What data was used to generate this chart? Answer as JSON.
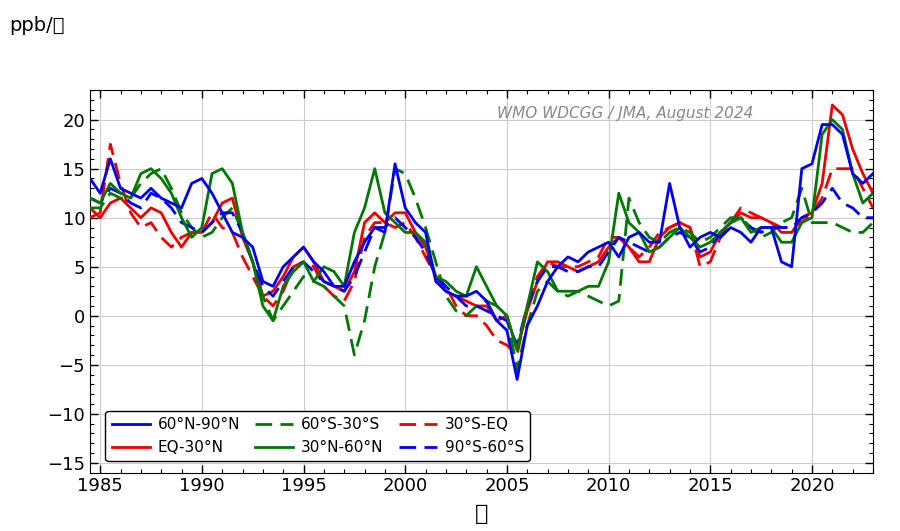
{
  "title_annotation": "WMO WDCGG / JMA, August 2024",
  "ylabel": "ppb/年",
  "xlabel": "年",
  "xlim": [
    1984.5,
    2023.0
  ],
  "ylim": [
    -16,
    23
  ],
  "yticks": [
    -15,
    -10,
    -5,
    0,
    5,
    10,
    15,
    20
  ],
  "xticks": [
    1985,
    1990,
    1995,
    2000,
    2005,
    2010,
    2015,
    2020
  ],
  "colors": {
    "60N90N": "#0000ee",
    "30N60N": "#007700",
    "EQ30N": "#ee0000",
    "30SEQ": "#ee0000",
    "60S30S": "#007700",
    "90S60S": "#0000ee"
  },
  "series": {
    "60N90N": {
      "t": [
        1984.5,
        1985.0,
        1985.5,
        1986.0,
        1986.5,
        1987.0,
        1987.5,
        1988.0,
        1988.5,
        1989.0,
        1989.5,
        1990.0,
        1990.5,
        1991.0,
        1991.5,
        1992.0,
        1992.5,
        1993.0,
        1993.5,
        1994.0,
        1994.5,
        1995.0,
        1995.5,
        1996.0,
        1996.5,
        1997.0,
        1997.5,
        1998.0,
        1998.5,
        1999.0,
        1999.5,
        2000.0,
        2000.5,
        2001.0,
        2001.5,
        2002.0,
        2002.5,
        2003.0,
        2003.5,
        2004.0,
        2004.5,
        2005.0,
        2005.5,
        2006.0,
        2006.5,
        2007.0,
        2007.5,
        2008.0,
        2008.5,
        2009.0,
        2009.5,
        2010.0,
        2010.5,
        2011.0,
        2011.5,
        2012.0,
        2012.5,
        2013.0,
        2013.5,
        2014.0,
        2014.5,
        2015.0,
        2015.5,
        2016.0,
        2016.5,
        2017.0,
        2017.5,
        2018.0,
        2018.5,
        2019.0,
        2019.5,
        2020.0,
        2020.5,
        2021.0,
        2021.5,
        2022.0,
        2022.5,
        2023.0
      ],
      "v": [
        14.0,
        12.5,
        16.0,
        13.0,
        12.5,
        12.0,
        13.0,
        12.0,
        11.5,
        11.0,
        13.5,
        14.0,
        12.5,
        10.5,
        8.5,
        8.0,
        7.0,
        3.5,
        3.0,
        5.0,
        6.0,
        7.0,
        5.5,
        4.5,
        3.0,
        3.0,
        5.5,
        7.5,
        9.0,
        8.5,
        15.5,
        11.0,
        9.5,
        8.5,
        3.5,
        2.5,
        2.0,
        2.0,
        2.5,
        1.5,
        -0.5,
        -1.5,
        -6.5,
        -1.0,
        1.0,
        3.5,
        5.0,
        6.0,
        5.5,
        6.5,
        7.0,
        7.5,
        6.0,
        8.0,
        8.5,
        7.5,
        7.5,
        13.5,
        9.0,
        7.0,
        8.0,
        8.5,
        8.0,
        9.0,
        8.5,
        7.5,
        9.0,
        9.0,
        5.5,
        5.0,
        15.0,
        15.5,
        19.5,
        19.5,
        18.5,
        14.5,
        13.5,
        14.5
      ]
    },
    "30N60N": {
      "t": [
        1984.5,
        1985.0,
        1985.5,
        1986.0,
        1986.5,
        1987.0,
        1987.5,
        1988.0,
        1988.5,
        1989.0,
        1989.5,
        1990.0,
        1990.5,
        1991.0,
        1991.5,
        1992.0,
        1992.5,
        1993.0,
        1993.5,
        1994.0,
        1994.5,
        1995.0,
        1995.5,
        1996.0,
        1996.5,
        1997.0,
        1997.5,
        1998.0,
        1998.5,
        1999.0,
        1999.5,
        2000.0,
        2000.5,
        2001.0,
        2001.5,
        2002.0,
        2002.5,
        2003.0,
        2003.5,
        2004.0,
        2004.5,
        2005.0,
        2005.5,
        2006.0,
        2006.5,
        2007.0,
        2007.5,
        2008.0,
        2008.5,
        2009.0,
        2009.5,
        2010.0,
        2010.5,
        2011.0,
        2011.5,
        2012.0,
        2012.5,
        2013.0,
        2013.5,
        2014.0,
        2014.5,
        2015.0,
        2015.5,
        2016.0,
        2016.5,
        2017.0,
        2017.5,
        2018.0,
        2018.5,
        2019.0,
        2019.5,
        2020.0,
        2020.5,
        2021.0,
        2021.5,
        2022.0,
        2022.5,
        2023.0
      ],
      "v": [
        12.0,
        11.5,
        13.5,
        12.5,
        12.0,
        14.5,
        15.0,
        14.0,
        12.5,
        10.0,
        8.0,
        9.0,
        14.5,
        15.0,
        13.5,
        8.5,
        5.5,
        1.0,
        -0.5,
        3.0,
        4.5,
        5.5,
        3.5,
        5.0,
        4.5,
        3.0,
        8.5,
        11.0,
        15.0,
        10.5,
        9.5,
        8.5,
        8.5,
        7.5,
        4.0,
        3.5,
        2.5,
        2.0,
        5.0,
        3.0,
        1.0,
        0.0,
        -3.5,
        1.0,
        5.5,
        4.5,
        2.5,
        2.5,
        2.5,
        3.0,
        3.0,
        5.5,
        12.5,
        9.5,
        8.5,
        6.5,
        7.0,
        8.0,
        9.0,
        8.0,
        7.0,
        7.5,
        8.5,
        9.5,
        10.0,
        8.5,
        9.0,
        9.0,
        7.5,
        7.5,
        9.5,
        10.0,
        18.5,
        20.0,
        19.0,
        14.5,
        11.5,
        12.5
      ]
    },
    "EQ30N": {
      "t": [
        1984.5,
        1985.0,
        1985.5,
        1986.0,
        1986.5,
        1987.0,
        1987.5,
        1988.0,
        1988.5,
        1989.0,
        1989.5,
        1990.0,
        1990.5,
        1991.0,
        1991.5,
        1992.0,
        1992.5,
        1993.0,
        1993.5,
        1994.0,
        1994.5,
        1995.0,
        1995.5,
        1996.0,
        1996.5,
        1997.0,
        1997.5,
        1998.0,
        1998.5,
        1999.0,
        1999.5,
        2000.0,
        2000.5,
        2001.0,
        2001.5,
        2002.0,
        2002.5,
        2003.0,
        2003.5,
        2004.0,
        2004.5,
        2005.0,
        2005.5,
        2006.0,
        2006.5,
        2007.0,
        2007.5,
        2008.0,
        2008.5,
        2009.0,
        2009.5,
        2010.0,
        2010.5,
        2011.0,
        2011.5,
        2012.0,
        2012.5,
        2013.0,
        2013.5,
        2014.0,
        2014.5,
        2015.0,
        2015.5,
        2016.0,
        2016.5,
        2017.0,
        2017.5,
        2018.0,
        2018.5,
        2019.0,
        2019.5,
        2020.0,
        2020.5,
        2021.0,
        2021.5,
        2022.0,
        2022.5,
        2023.0
      ],
      "v": [
        11.0,
        10.0,
        11.5,
        12.0,
        11.0,
        10.0,
        11.0,
        10.5,
        8.5,
        7.0,
        8.5,
        8.5,
        9.5,
        11.5,
        12.0,
        8.0,
        5.5,
        2.0,
        2.5,
        4.0,
        6.0,
        7.0,
        5.5,
        3.5,
        3.0,
        2.5,
        4.5,
        9.5,
        10.5,
        9.5,
        10.5,
        10.5,
        8.5,
        7.0,
        4.0,
        2.5,
        2.0,
        1.5,
        1.0,
        1.0,
        -0.5,
        0.0,
        -3.5,
        0.5,
        3.5,
        5.5,
        5.5,
        5.0,
        4.5,
        5.0,
        5.5,
        7.0,
        8.0,
        7.0,
        5.5,
        5.5,
        8.0,
        9.0,
        9.5,
        9.0,
        6.0,
        6.5,
        8.5,
        9.5,
        10.5,
        10.0,
        10.0,
        9.5,
        8.5,
        8.5,
        10.0,
        10.5,
        13.5,
        21.5,
        20.5,
        17.0,
        14.5,
        12.5
      ]
    },
    "30SEQ": {
      "t": [
        1984.5,
        1985.0,
        1985.5,
        1986.0,
        1986.5,
        1987.0,
        1987.5,
        1988.0,
        1988.5,
        1989.0,
        1989.5,
        1990.0,
        1990.5,
        1991.0,
        1991.5,
        1992.0,
        1992.5,
        1993.0,
        1993.5,
        1994.0,
        1994.5,
        1995.0,
        1995.5,
        1996.0,
        1996.5,
        1997.0,
        1997.5,
        1998.0,
        1998.5,
        1999.0,
        1999.5,
        2000.0,
        2000.5,
        2001.0,
        2001.5,
        2002.0,
        2002.5,
        2003.0,
        2003.5,
        2004.0,
        2004.5,
        2005.0,
        2005.5,
        2006.0,
        2006.5,
        2007.0,
        2007.5,
        2008.0,
        2008.5,
        2009.0,
        2009.5,
        2010.0,
        2010.5,
        2011.0,
        2011.5,
        2012.0,
        2012.5,
        2013.0,
        2013.5,
        2014.0,
        2014.5,
        2015.0,
        2015.5,
        2016.0,
        2016.5,
        2017.0,
        2017.5,
        2018.0,
        2018.5,
        2019.0,
        2019.5,
        2020.0,
        2020.5,
        2021.0,
        2021.5,
        2022.0,
        2022.5,
        2023.0
      ],
      "v": [
        10.0,
        10.5,
        17.5,
        13.5,
        10.5,
        9.0,
        9.5,
        8.0,
        7.0,
        8.0,
        8.5,
        8.5,
        10.5,
        9.0,
        8.5,
        6.0,
        4.0,
        2.0,
        1.0,
        2.5,
        5.0,
        5.5,
        5.0,
        3.0,
        2.0,
        1.5,
        3.5,
        8.0,
        9.5,
        9.5,
        9.0,
        9.5,
        8.0,
        6.0,
        4.0,
        3.0,
        1.0,
        0.0,
        0.0,
        -1.0,
        -2.5,
        -3.0,
        -4.0,
        1.0,
        4.0,
        5.5,
        5.0,
        5.0,
        5.0,
        5.5,
        6.0,
        8.0,
        8.0,
        7.0,
        6.0,
        7.0,
        8.5,
        9.0,
        9.5,
        9.0,
        5.0,
        5.5,
        8.0,
        9.5,
        11.0,
        10.5,
        10.0,
        9.5,
        9.0,
        9.0,
        9.5,
        10.5,
        12.0,
        15.0,
        15.0,
        15.0,
        13.0,
        11.0
      ]
    },
    "60S30S": {
      "t": [
        1984.5,
        1985.0,
        1985.5,
        1986.0,
        1986.5,
        1987.0,
        1987.5,
        1988.0,
        1988.5,
        1989.0,
        1989.5,
        1990.0,
        1990.5,
        1991.0,
        1991.5,
        1992.0,
        1992.5,
        1993.0,
        1993.5,
        1994.0,
        1994.5,
        1995.0,
        1995.5,
        1996.0,
        1996.5,
        1997.0,
        1997.5,
        1998.0,
        1998.5,
        1999.0,
        1999.5,
        2000.0,
        2000.5,
        2001.0,
        2001.5,
        2002.0,
        2002.5,
        2003.0,
        2003.5,
        2004.0,
        2004.5,
        2005.0,
        2005.5,
        2006.0,
        2006.5,
        2007.0,
        2007.5,
        2008.0,
        2008.5,
        2009.0,
        2009.5,
        2010.0,
        2010.5,
        2011.0,
        2011.5,
        2012.0,
        2012.5,
        2013.0,
        2013.5,
        2014.0,
        2014.5,
        2015.0,
        2015.5,
        2016.0,
        2016.5,
        2017.0,
        2017.5,
        2018.0,
        2018.5,
        2019.0,
        2019.5,
        2020.0,
        2020.5,
        2021.0,
        2021.5,
        2022.0,
        2022.5,
        2023.0
      ],
      "v": [
        11.0,
        11.0,
        12.5,
        12.0,
        12.0,
        13.5,
        14.5,
        15.0,
        13.0,
        10.5,
        9.0,
        8.0,
        8.5,
        10.0,
        11.0,
        8.5,
        5.5,
        2.0,
        -0.5,
        1.0,
        2.5,
        4.0,
        3.5,
        3.0,
        2.0,
        1.0,
        -4.0,
        -0.5,
        5.0,
        8.5,
        15.0,
        14.5,
        12.0,
        9.0,
        5.5,
        2.0,
        0.5,
        0.0,
        1.0,
        1.5,
        1.0,
        0.0,
        -5.5,
        -1.0,
        2.5,
        3.5,
        2.5,
        2.0,
        2.5,
        2.0,
        1.5,
        1.0,
        1.5,
        12.0,
        9.5,
        8.0,
        7.5,
        8.5,
        9.0,
        8.5,
        7.5,
        8.0,
        9.0,
        10.0,
        10.0,
        9.0,
        8.0,
        8.5,
        9.5,
        10.0,
        13.0,
        9.5,
        9.5,
        9.5,
        9.0,
        8.5,
        8.5,
        9.5
      ]
    },
    "90S60S": {
      "t": [
        1984.5,
        1985.0,
        1985.5,
        1986.0,
        1986.5,
        1987.0,
        1987.5,
        1988.0,
        1988.5,
        1989.0,
        1989.5,
        1990.0,
        1990.5,
        1991.0,
        1991.5,
        1992.0,
        1992.5,
        1993.0,
        1993.5,
        1994.0,
        1994.5,
        1995.0,
        1995.5,
        1996.0,
        1996.5,
        1997.0,
        1997.5,
        1998.0,
        1998.5,
        1999.0,
        1999.5,
        2000.0,
        2000.5,
        2001.0,
        2001.5,
        2002.0,
        2002.5,
        2003.0,
        2003.5,
        2004.0,
        2004.5,
        2005.0,
        2005.5,
        2006.0,
        2006.5,
        2007.0,
        2007.5,
        2008.0,
        2008.5,
        2009.0,
        2009.5,
        2010.0,
        2010.5,
        2011.0,
        2011.5,
        2012.0,
        2012.5,
        2013.0,
        2013.5,
        2014.0,
        2014.5,
        2015.0,
        2015.5,
        2016.0,
        2016.5,
        2017.0,
        2017.5,
        2018.0,
        2018.5,
        2019.0,
        2019.5,
        2020.0,
        2020.5,
        2021.0,
        2021.5,
        2022.0,
        2022.5,
        2023.0
      ],
      "v": [
        12.0,
        11.5,
        13.0,
        12.5,
        11.5,
        11.0,
        12.5,
        12.0,
        11.0,
        9.5,
        9.0,
        8.5,
        9.5,
        10.5,
        10.5,
        8.5,
        5.5,
        3.0,
        2.0,
        3.5,
        5.0,
        5.5,
        4.5,
        3.5,
        3.0,
        2.5,
        4.0,
        6.5,
        9.0,
        9.0,
        10.0,
        9.0,
        8.0,
        6.5,
        4.0,
        3.0,
        2.0,
        1.0,
        1.0,
        0.5,
        0.0,
        -0.5,
        -3.0,
        1.0,
        3.5,
        5.0,
        5.0,
        4.5,
        4.5,
        5.0,
        5.0,
        6.5,
        8.0,
        7.5,
        7.0,
        6.5,
        7.0,
        8.0,
        8.5,
        8.0,
        6.5,
        7.0,
        8.5,
        9.5,
        10.0,
        9.0,
        8.5,
        9.0,
        9.0,
        9.0,
        10.0,
        10.5,
        11.5,
        13.0,
        11.5,
        11.0,
        10.0,
        10.0
      ]
    }
  }
}
